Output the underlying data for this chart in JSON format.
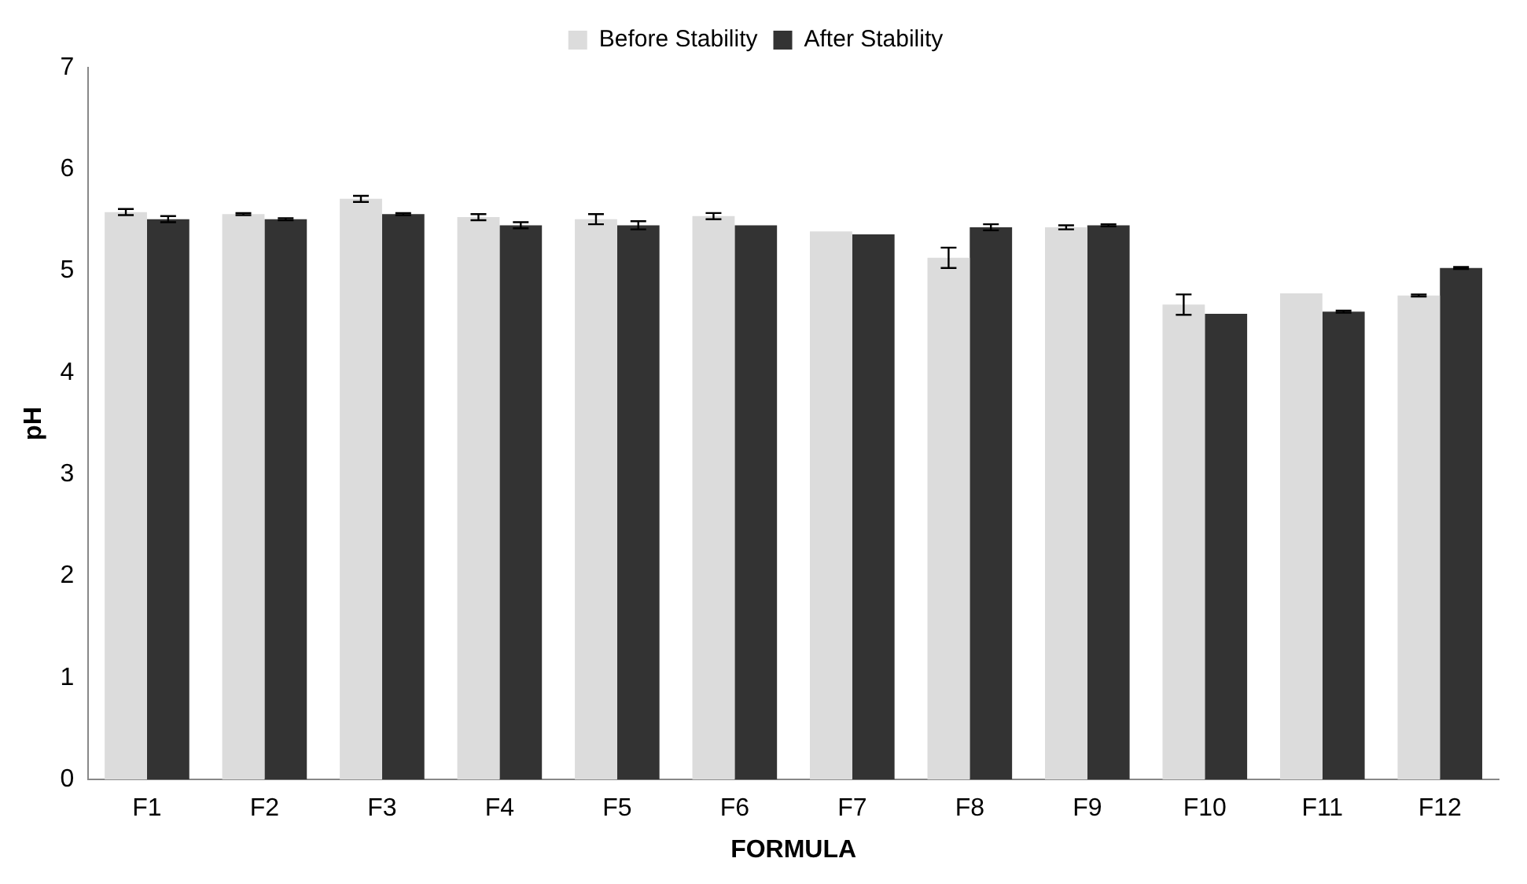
{
  "chart_data": {
    "type": "bar",
    "xlabel": "FORMULA",
    "ylabel": "pH",
    "categories": [
      "F1",
      "F2",
      "F3",
      "F4",
      "F5",
      "F6",
      "F7",
      "F8",
      "F9",
      "F10",
      "F11",
      "F12"
    ],
    "series": [
      {
        "name": "Before Stability",
        "color": "#dcdcdc",
        "values": [
          5.58,
          5.56,
          5.71,
          5.53,
          5.51,
          5.54,
          5.39,
          5.13,
          5.43,
          4.67,
          4.78,
          4.76
        ],
        "errors": [
          0.03,
          0.01,
          0.03,
          0.03,
          0.05,
          0.03,
          null,
          0.1,
          0.02,
          0.1,
          null,
          0.01
        ]
      },
      {
        "name": "After Stability",
        "color": "#333333",
        "values": [
          5.51,
          5.51,
          5.56,
          5.45,
          5.45,
          5.45,
          5.36,
          5.43,
          5.45,
          4.58,
          4.6,
          5.03
        ],
        "errors": [
          0.03,
          0.01,
          0.01,
          0.03,
          0.04,
          null,
          null,
          0.03,
          0.01,
          null,
          0.01,
          0.01
        ]
      }
    ],
    "ylim": [
      0,
      7
    ],
    "yticks": [
      0,
      1,
      2,
      3,
      4,
      5,
      6,
      7
    ],
    "grid": false,
    "legend": "top"
  }
}
